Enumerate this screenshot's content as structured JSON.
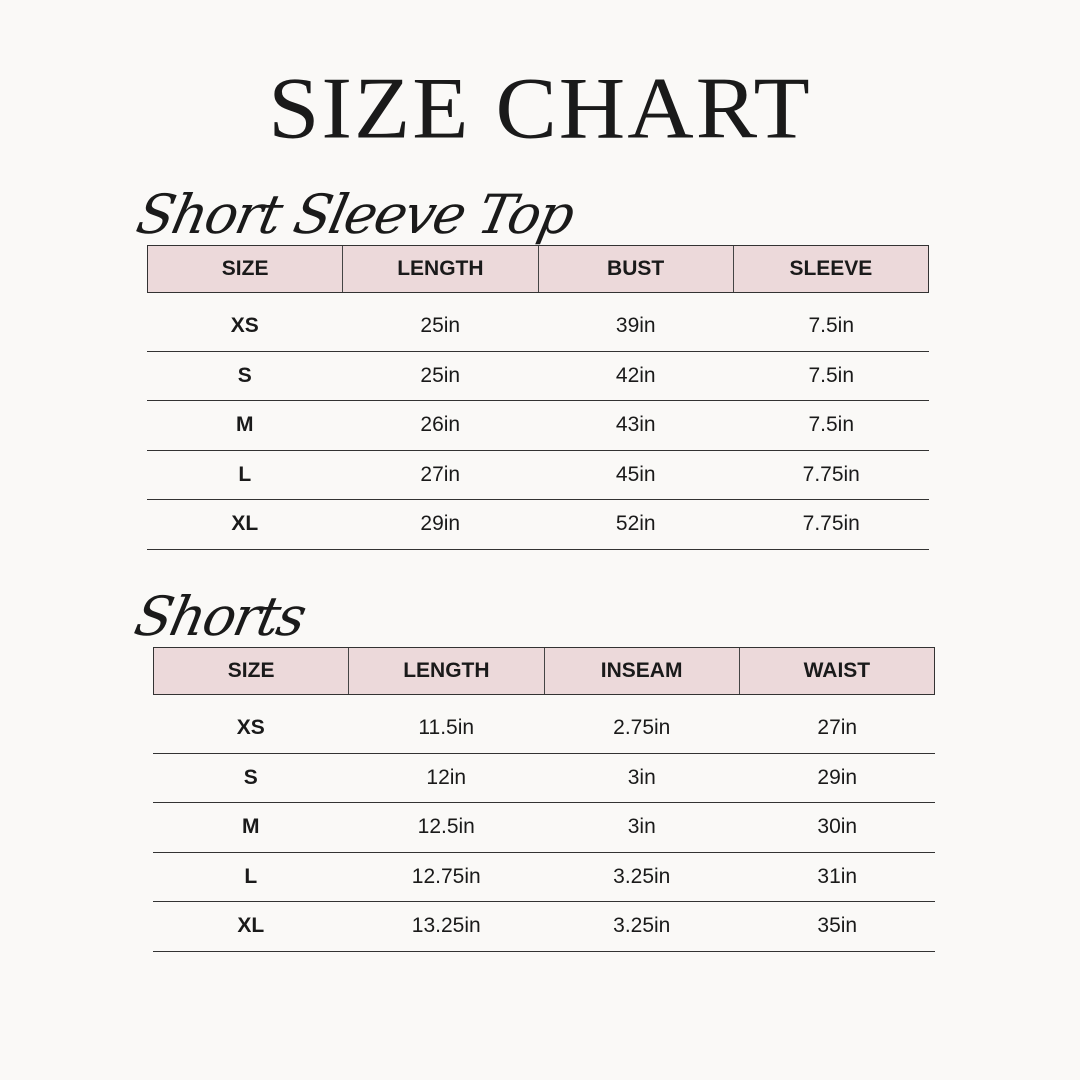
{
  "title": "SIZE CHART",
  "sections": [
    {
      "heading": "Short Sleeve Top",
      "columns": [
        "SIZE",
        "LENGTH",
        "BUST",
        "SLEEVE"
      ],
      "rows": [
        [
          "XS",
          "25in",
          "39in",
          "7.5in"
        ],
        [
          "S",
          "25in",
          "42in",
          "7.5in"
        ],
        [
          "M",
          "26in",
          "43in",
          "7.5in"
        ],
        [
          "L",
          "27in",
          "45in",
          "7.75in"
        ],
        [
          "XL",
          "29in",
          "52in",
          "7.75in"
        ]
      ]
    },
    {
      "heading": "Shorts",
      "columns": [
        "SIZE",
        "LENGTH",
        "INSEAM",
        "WAIST"
      ],
      "rows": [
        [
          "XS",
          "11.5in",
          "2.75in",
          "27in"
        ],
        [
          "S",
          "12in",
          "3in",
          "29in"
        ],
        [
          "M",
          "12.5in",
          "3in",
          "30in"
        ],
        [
          "L",
          "12.75in",
          "3.25in",
          "31in"
        ],
        [
          "XL",
          "13.25in",
          "3.25in",
          "35in"
        ]
      ]
    }
  ],
  "colors": {
    "header_fill": "#ecd9da",
    "background": "#faf9f7",
    "text": "#1a1a1a"
  }
}
